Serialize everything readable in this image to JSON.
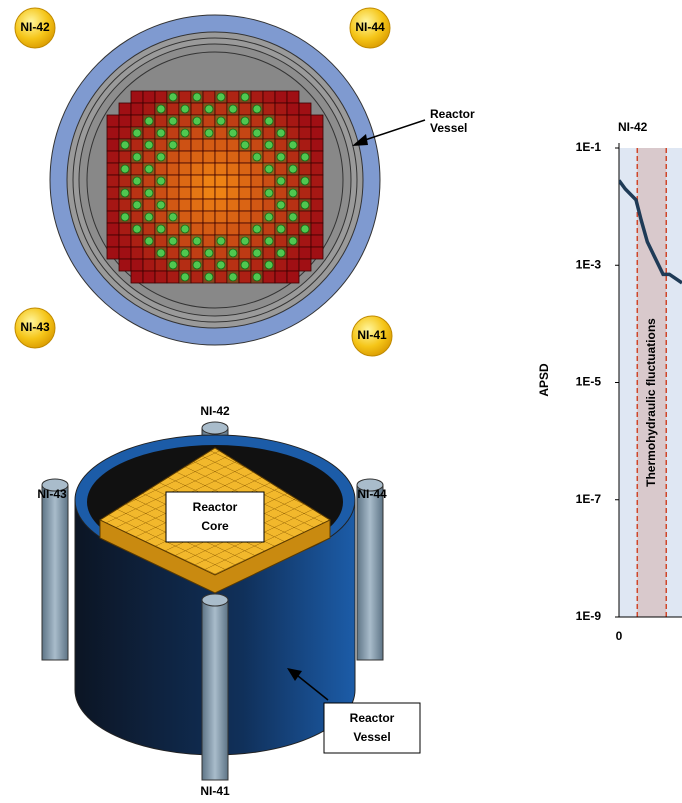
{
  "top_view": {
    "detectors": [
      "NI-42",
      "NI-44",
      "NI-43",
      "NI-41"
    ],
    "vessel_label": [
      "Reactor",
      "Vessel"
    ]
  },
  "iso_view": {
    "detectors": [
      "NI-42",
      "NI-43",
      "NI-44",
      "NI-41"
    ],
    "core_label": [
      "Reactor",
      "Core"
    ],
    "vessel_label": [
      "Reactor",
      "Vessel"
    ]
  },
  "chart_data": {
    "type": "line",
    "title": "NI-42",
    "y_label": "APSD",
    "log_y": true,
    "ylim": [
      1e-09,
      0.1
    ],
    "yticks": [
      {
        "value": 0.1,
        "label": "1E-1"
      },
      {
        "value": 0.001,
        "label": "1E-3"
      },
      {
        "value": 1e-05,
        "label": "1E-5"
      },
      {
        "value": 1e-07,
        "label": "1E-7"
      },
      {
        "value": 1e-09,
        "label": "1E-9"
      }
    ],
    "xlim": [
      0,
      1
    ],
    "xticks": [
      0
    ],
    "band": [
      0.29,
      0.75
    ],
    "band_label": "Thermohydraulic fluctuations",
    "x": [
      0,
      0.1,
      0.27,
      0.35,
      0.45,
      0.55,
      0.7,
      0.8,
      1.0
    ],
    "series": [
      {
        "color": "#1f3b57",
        "values": [
          0.028,
          0.02,
          0.013,
          0.006,
          0.0025,
          0.0015,
          0.0007,
          0.0007,
          0.0005
        ]
      }
    ]
  }
}
